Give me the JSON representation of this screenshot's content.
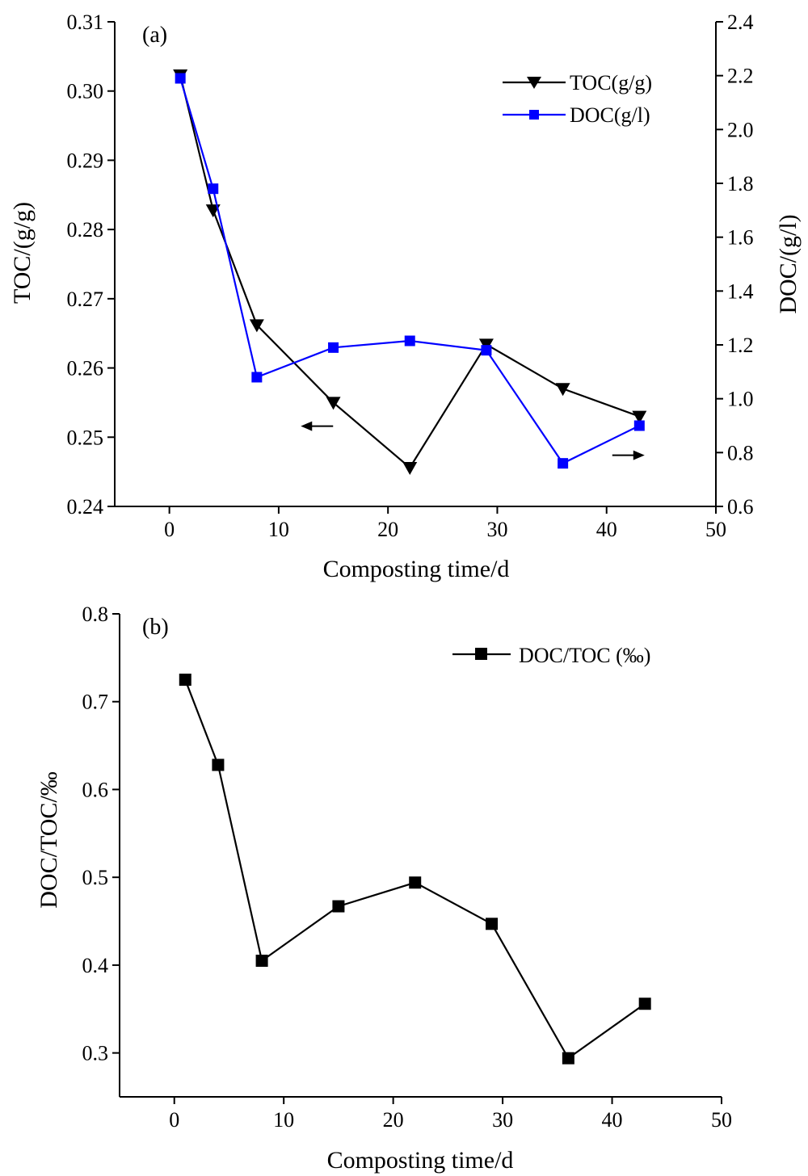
{
  "figure": {
    "background": "#ffffff"
  },
  "chart_data": [
    {
      "type": "line",
      "panel_label": "(a)",
      "xlabel": "Composting time/d",
      "ylabel_left": "TOC/(g/g)",
      "ylabel_right": "DOC/(g/l)",
      "xlim": [
        -5,
        50
      ],
      "ylim_left": [
        0.24,
        0.31
      ],
      "ylim_right": [
        0.6,
        2.4
      ],
      "x_ticks": [
        0,
        10,
        20,
        30,
        40,
        50
      ],
      "x_tick_labels": [
        "0",
        "10",
        "20",
        "30",
        "40",
        "50"
      ],
      "y_left_ticks": [
        0.24,
        0.25,
        0.26,
        0.27,
        0.28,
        0.29,
        0.3,
        0.31
      ],
      "y_left_tick_labels": [
        "0.24",
        "0.25",
        "0.26",
        "0.27",
        "0.28",
        "0.29",
        "0.30",
        "0.31"
      ],
      "y_right_ticks": [
        0.6,
        0.8,
        1.0,
        1.2,
        1.4,
        1.6,
        1.8,
        2.0,
        2.2,
        2.4
      ],
      "y_right_tick_labels": [
        "0.6",
        "0.8",
        "1.0",
        "1.2",
        "1.4",
        "1.6",
        "1.8",
        "2.0",
        "2.2",
        "2.4"
      ],
      "grid": false,
      "legend_position": "top-right",
      "x": [
        1,
        4,
        8,
        15,
        22,
        29,
        36,
        43
      ],
      "series": [
        {
          "name": "TOC(g/g)",
          "axis": "left",
          "marker": "triangle-down",
          "color": "#000000",
          "values": [
            0.3023,
            0.2828,
            0.2662,
            0.255,
            0.2456,
            0.2634,
            0.257,
            0.253
          ]
        },
        {
          "name": "DOC(g/l)",
          "axis": "right",
          "marker": "square",
          "color": "#0000ff",
          "values": [
            2.19,
            1.78,
            1.08,
            1.19,
            1.215,
            1.18,
            0.76,
            0.9
          ]
        }
      ],
      "annotations": [
        {
          "type": "arrow",
          "direction": "left",
          "x": 13.5,
          "y": 0.2516,
          "axis": "left"
        },
        {
          "type": "arrow",
          "direction": "right",
          "x": 42,
          "y": 0.79,
          "axis": "right"
        }
      ]
    },
    {
      "type": "line",
      "panel_label": "(b)",
      "xlabel": "Composting time/d",
      "ylabel": "DOC/TOC/‰",
      "xlim": [
        -5,
        50
      ],
      "ylim": [
        0.25,
        0.8
      ],
      "x_ticks": [
        0,
        10,
        20,
        30,
        40,
        50
      ],
      "x_tick_labels": [
        "0",
        "10",
        "20",
        "30",
        "40",
        "50"
      ],
      "y_ticks": [
        0.3,
        0.4,
        0.5,
        0.6,
        0.7,
        0.8
      ],
      "y_tick_labels": [
        "0.3",
        "0.4",
        "0.5",
        "0.6",
        "0.7",
        "0.8"
      ],
      "grid": false,
      "legend_position": "top-right",
      "x": [
        1,
        4,
        8,
        15,
        22,
        29,
        36,
        43
      ],
      "series": [
        {
          "name": "DOC/TOC (‰)",
          "marker": "square",
          "color": "#000000",
          "values": [
            0.725,
            0.628,
            0.405,
            0.467,
            0.494,
            0.447,
            0.294,
            0.356
          ]
        }
      ]
    }
  ]
}
